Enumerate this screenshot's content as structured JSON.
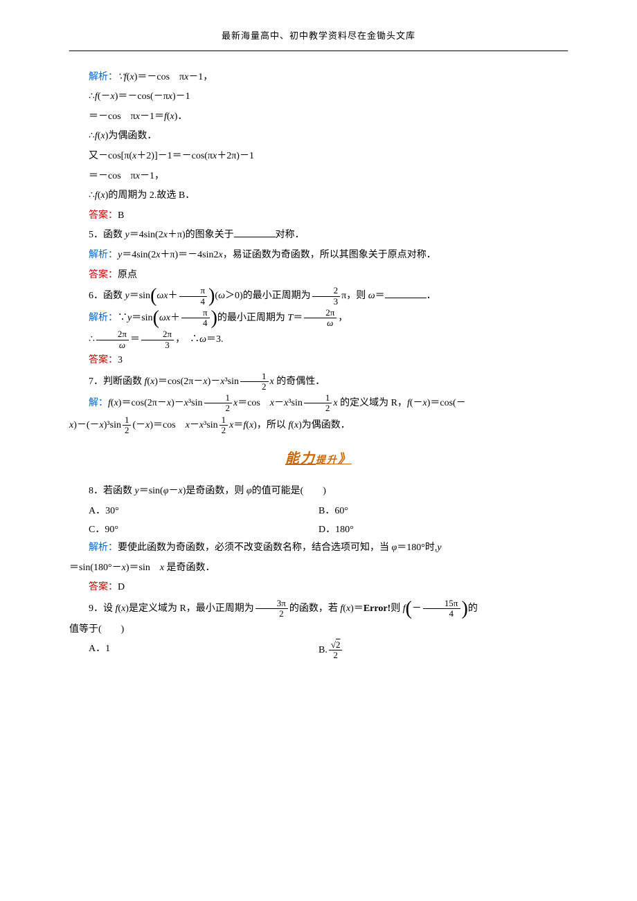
{
  "header": {
    "text": "最新海量高中、初中教学资料尽在金锄头文库"
  },
  "colors": {
    "blue": "#0066cc",
    "red": "#cc0000",
    "orange": "#cc6600",
    "text": "#000000",
    "background": "#ffffff"
  },
  "typography": {
    "body_font": "SimSun",
    "math_font": "Times New Roman",
    "body_size": 14,
    "line_height": 1.9
  },
  "lines": {
    "l1": "解析：",
    "l1b": "∵f(x)＝－cos　πx－1，",
    "l2": "∴f(－x)＝－cos(－πx)－1",
    "l3": "＝－cos　πx－1＝f(x)．",
    "l4": "∴f(x)为偶函数．",
    "l5": "又－cos[π(x＋2)]－1＝－cos(πx＋2π)－1",
    "l6": "＝－cos　πx－1，",
    "l7": "∴f(x)的周期为 2.故选 B．",
    "l8": "答案：",
    "l8b": "B",
    "l9": "5．函数 y＝4sin(2x＋π)的图象关于",
    "l9b": "对称．",
    "l10": "解析：",
    "l10b": "y＝4sin(2x＋π)＝－4sin2x，易证函数为奇函数，所以其图象关于原点对称．",
    "l11": "答案：",
    "l11b": "原点",
    "l12a": "6．函数 y＝sin",
    "l12b": "(ω＞0)的最小正周期为",
    "l12c": "π，则 ω＝",
    "l12d": "．",
    "l13a": "解析：",
    "l13b": "∵y＝sin",
    "l13c": "的最小正周期为 T＝",
    "l13d": "，",
    "l14a": "∴",
    "l14b": "＝",
    "l14c": "，　∴ω＝3.",
    "l15": "答案：",
    "l15b": "3",
    "l16a": "7．判断函数 f(x)＝cos(2π－x)－x³sin",
    "l16b": "x 的奇偶性．",
    "l17a": "解：",
    "l17b": "f(x)＝cos(2π－x)－x³sin",
    "l17c": "x＝cos　x－x³sin",
    "l17d": "x 的定义域为 R，f(－x)＝cos(－",
    "l18a": "x)－(－x)³sin",
    "l18b": "(－x)＝cos　x－x³sin",
    "l18c": "x＝f(x)，所以 f(x)为偶函数．",
    "section": "能力提升",
    "section_suffix": "》",
    "l19": "8．若函数 y＝sin(φ－x)是奇函数，则 φ的值可能是(　　)",
    "opt_a": "A．30°",
    "opt_b": "B．60°",
    "opt_c": "C．90°",
    "opt_d": "D．180°",
    "l20": "解析：",
    "l20b": "要使此函数为奇函数，必须不改变函数名称，结合选项可知，当 φ＝180°时,y",
    "l21": "＝sin(180°－x)＝sin　x 是奇函数．",
    "l22": "答案：",
    "l22b": "D",
    "l23a": "9．设 f(x)是定义域为 R，最小正周期为",
    "l23b": "的函数，若 f(x)＝",
    "l23c": "Error!",
    "l23d": "则 f",
    "l23e": "的",
    "l24": "值等于(　　)",
    "opt_a2": "A．1",
    "opt_b2": "B."
  },
  "fractions": {
    "pi_4": {
      "num": "π",
      "den": "4"
    },
    "two_3": {
      "num": "2",
      "den": "3"
    },
    "two_pi_omega": {
      "num": "2π",
      "den": "ω"
    },
    "two_pi_3": {
      "num": "2π",
      "den": "3"
    },
    "one_2": {
      "num": "1",
      "den": "2"
    },
    "three_pi_2": {
      "num": "3π",
      "den": "2"
    },
    "fifteen_pi_4": {
      "num": "15π",
      "den": "4"
    },
    "sqrt2_2": {
      "num": "√2",
      "den": "2"
    }
  },
  "math_terms": {
    "omega_x": "ωx＋",
    "minus": "－"
  }
}
